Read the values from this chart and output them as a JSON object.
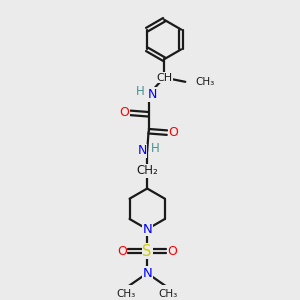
{
  "bg_color": "#ebebeb",
  "bond_color": "#1a1a1a",
  "N_color": "#0000ff",
  "O_color": "#ff0000",
  "S_color": "#cccc00",
  "H_color": "#4a9090",
  "line_width": 1.6,
  "figsize": [
    3.0,
    3.0
  ],
  "dpi": 100,
  "xlim": [
    0,
    10
  ],
  "ylim": [
    0,
    10
  ]
}
